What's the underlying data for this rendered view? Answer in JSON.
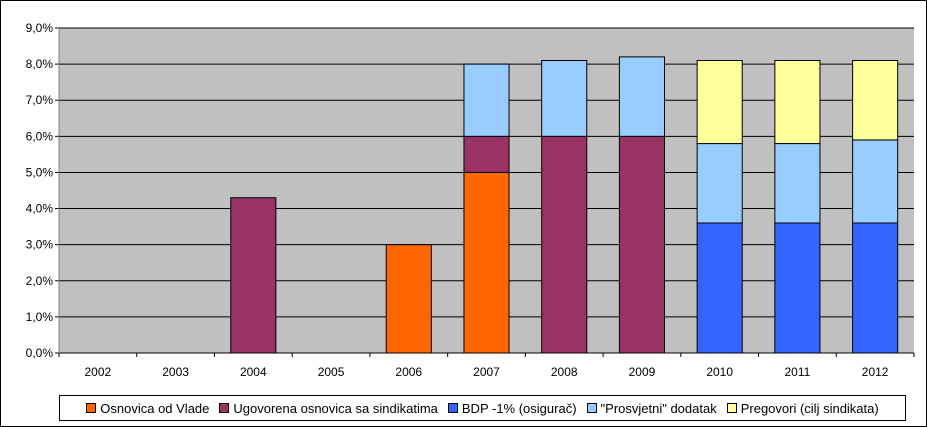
{
  "chart_data": {
    "type": "bar",
    "stacked": true,
    "title": "",
    "xlabel": "",
    "ylabel": "",
    "categories": [
      "2002",
      "2003",
      "2004",
      "2005",
      "2006",
      "2007",
      "2008",
      "2009",
      "2010",
      "2011",
      "2012"
    ],
    "ylim": [
      0,
      9
    ],
    "yticks": [
      "0,0%",
      "1,0%",
      "2,0%",
      "3,0%",
      "4,0%",
      "5,0%",
      "6,0%",
      "7,0%",
      "8,0%",
      "9,0%"
    ],
    "grid": true,
    "legend_position": "bottom",
    "plot_background": "#c0c0c0",
    "series": [
      {
        "name": "Osnovica od Vlade",
        "color": "#ff6600",
        "values": [
          0,
          0,
          0,
          0,
          3.0,
          5.0,
          0,
          0,
          0,
          0,
          0
        ]
      },
      {
        "name": "Ugovorena osnovica sa sindikatima",
        "color": "#993366",
        "values": [
          0,
          0,
          4.3,
          0,
          0,
          1.0,
          6.0,
          6.0,
          0,
          0,
          0
        ]
      },
      {
        "name": "BDP -1% (osigurač)",
        "color": "#3366ff",
        "values": [
          0,
          0,
          0,
          0,
          0,
          0,
          0,
          0,
          3.6,
          3.6,
          3.6
        ]
      },
      {
        "name": "\"Prosvjetni\" dodatak",
        "color": "#99ccff",
        "values": [
          0,
          0,
          0,
          0,
          0,
          2.0,
          2.1,
          2.2,
          2.2,
          2.2,
          2.3
        ]
      },
      {
        "name": "Pregovori (cilj sindikata)",
        "color": "#ffff99",
        "values": [
          0,
          0,
          0,
          0,
          0,
          0,
          0,
          0,
          2.3,
          2.3,
          2.2
        ]
      }
    ]
  }
}
